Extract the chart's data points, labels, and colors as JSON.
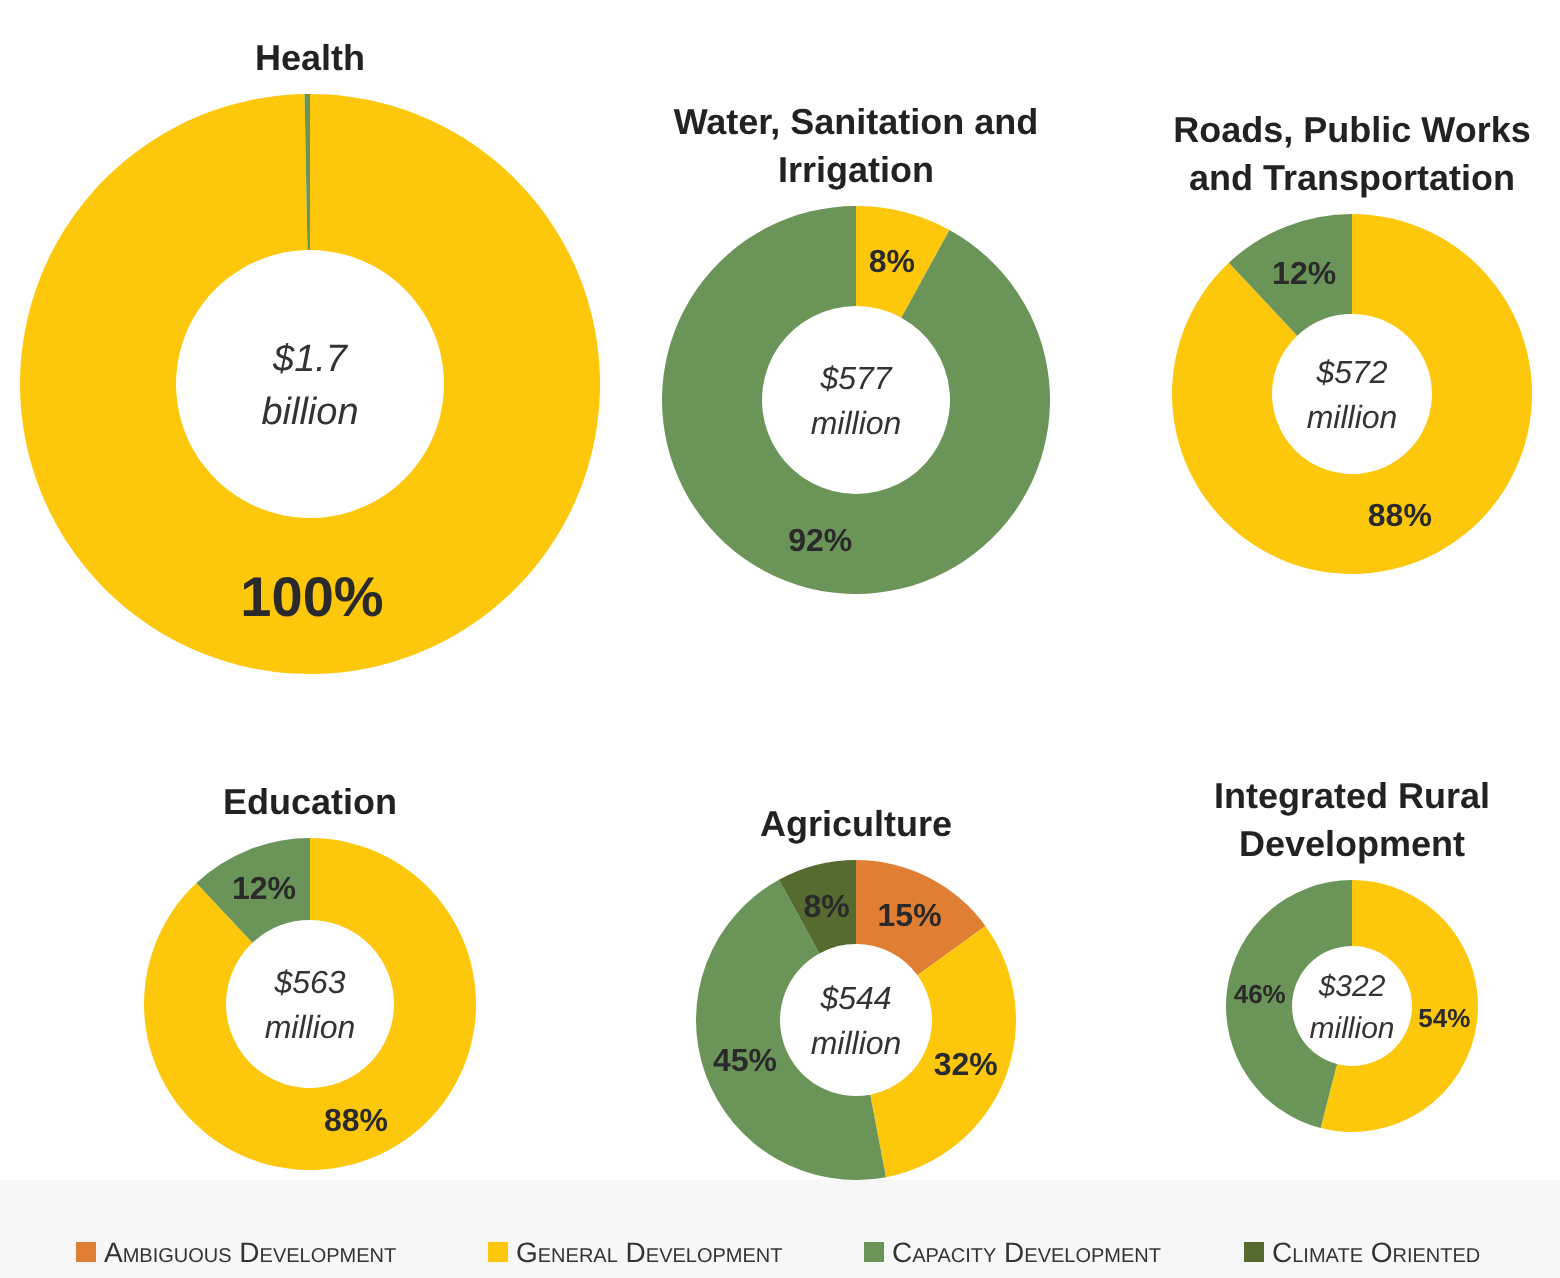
{
  "chart_data": [
    {
      "type": "donut",
      "title": "Health",
      "values": [
        99.7,
        0.3
      ],
      "colors": [
        "#fdc70c",
        "#6b9558"
      ],
      "value_labels": [
        "100%",
        null
      ],
      "annotations": [
        "$1.7 billion"
      ]
    },
    {
      "type": "donut",
      "title": "Water, Sanitation and Irrigation",
      "values": [
        8,
        92
      ],
      "colors": [
        "#fdc70c",
        "#6b9558"
      ],
      "value_labels": [
        "8%",
        "92%"
      ],
      "annotations": [
        "$577 million"
      ]
    },
    {
      "type": "donut",
      "title": "Roads, Public Works and Transportation",
      "values": [
        88,
        12
      ],
      "colors": [
        "#fdc70c",
        "#6b9558"
      ],
      "value_labels": [
        "88%",
        "12%"
      ],
      "annotations": [
        "$572 million"
      ]
    },
    {
      "type": "donut",
      "title": "Education",
      "values": [
        88,
        12
      ],
      "colors": [
        "#fdc70c",
        "#6b9558"
      ],
      "value_labels": [
        "88%",
        "12%"
      ],
      "annotations": [
        "$563 million"
      ]
    },
    {
      "type": "donut",
      "title": "Agriculture",
      "categories": [
        "Ambiguous Development",
        "General Development",
        "Capacity Development",
        "Climate Oriented"
      ],
      "values": [
        15,
        32,
        45,
        8
      ],
      "colors": [
        "#e07f34",
        "#fdc70c",
        "#6b9558",
        "#566b2f"
      ],
      "value_labels": [
        "15%",
        "32%",
        "45%",
        "8%"
      ],
      "annotations": [
        "$544 million"
      ],
      "legend": "bottom"
    },
    {
      "type": "donut",
      "title": "Integrated Rural Development",
      "values": [
        54,
        46
      ],
      "colors": [
        "#fdc70c",
        "#6b9558"
      ],
      "value_labels": [
        "54%",
        "46%"
      ],
      "annotations": [
        "$322 million"
      ]
    }
  ]
}
